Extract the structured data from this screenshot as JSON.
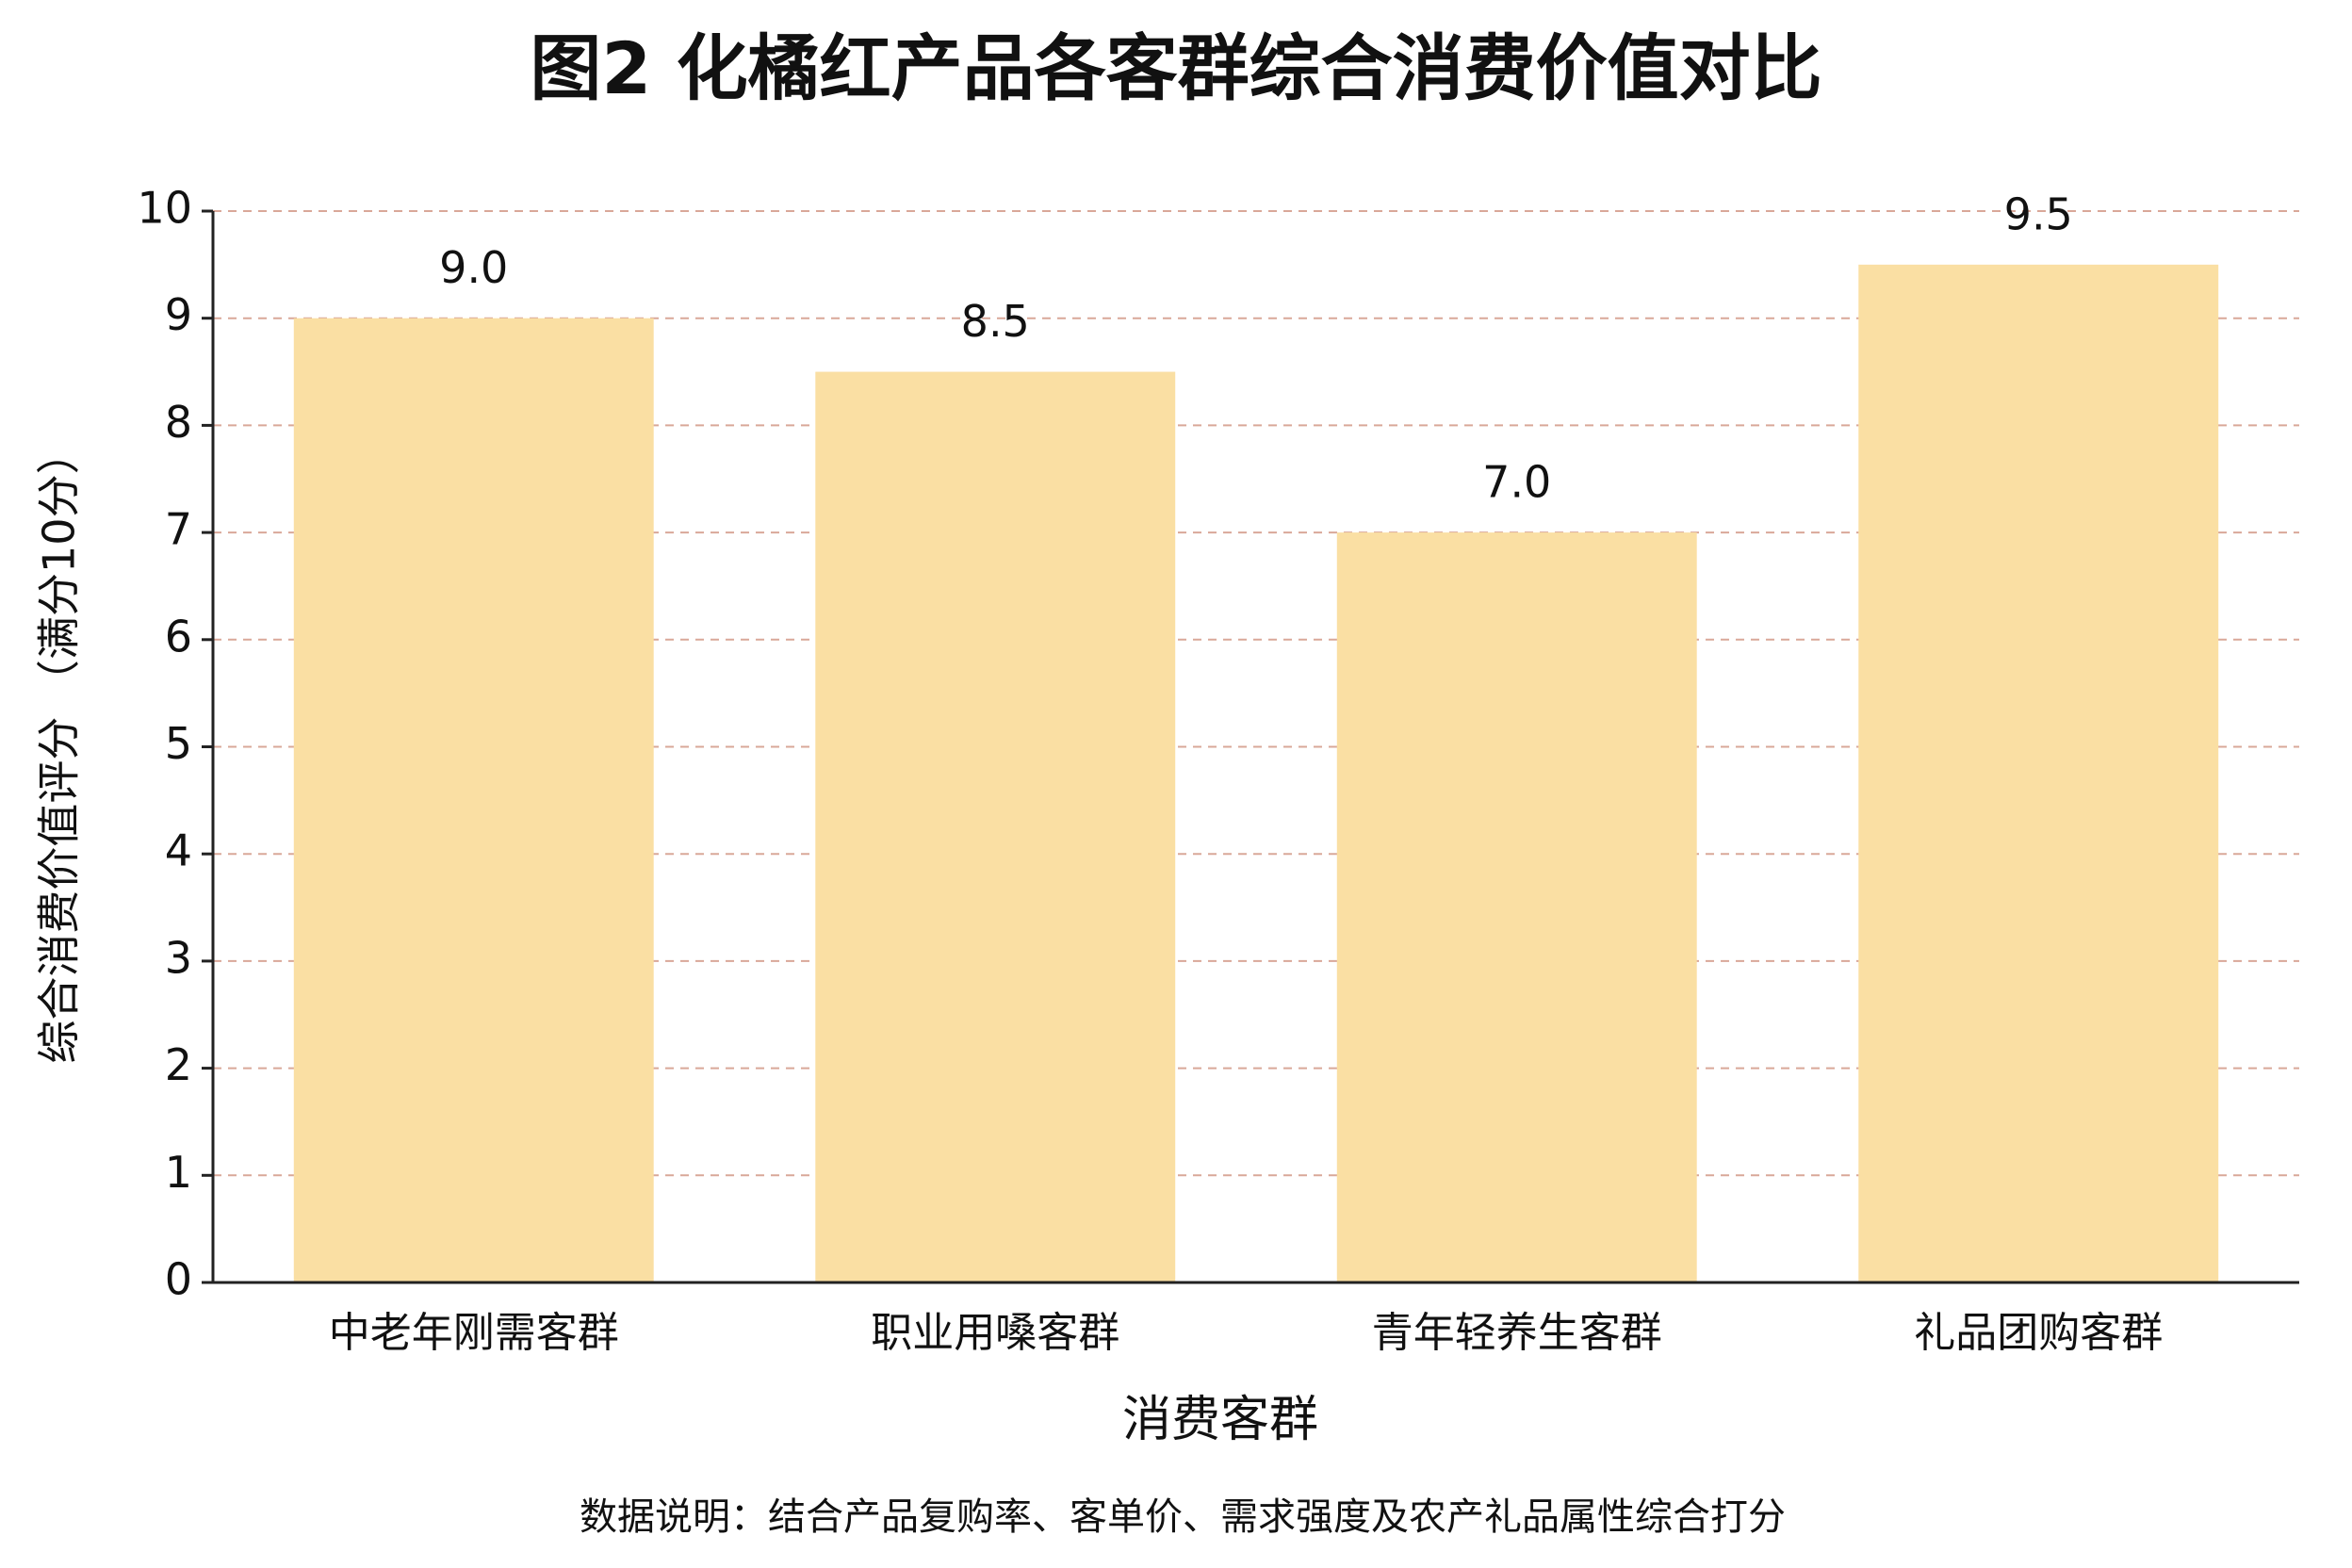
{
  "chart_data": {
    "type": "bar",
    "title": "图2 化橘红产品各客群综合消费价值对比",
    "x_label": "消费客群",
    "y_label": "综合消费价值评分 （满分10分）",
    "note": "数据说明：结合产品复购率、客单价、需求强度及农产礼品属性综合打分",
    "categories": [
      "中老年刚需客群",
      "职业用嗓客群",
      "青年轻养生客群",
      "礼品团购客群"
    ],
    "values": [
      9,
      8.5,
      7,
      9.5
    ],
    "value_labels": [
      "9.0",
      "8.5",
      "7.0",
      "9.5"
    ],
    "color": "#fadfa3",
    "ylim": [
      0,
      10
    ],
    "yticks": [
      0,
      1,
      2,
      3,
      4,
      5,
      6,
      7,
      8,
      9,
      10
    ],
    "grid": true
  }
}
